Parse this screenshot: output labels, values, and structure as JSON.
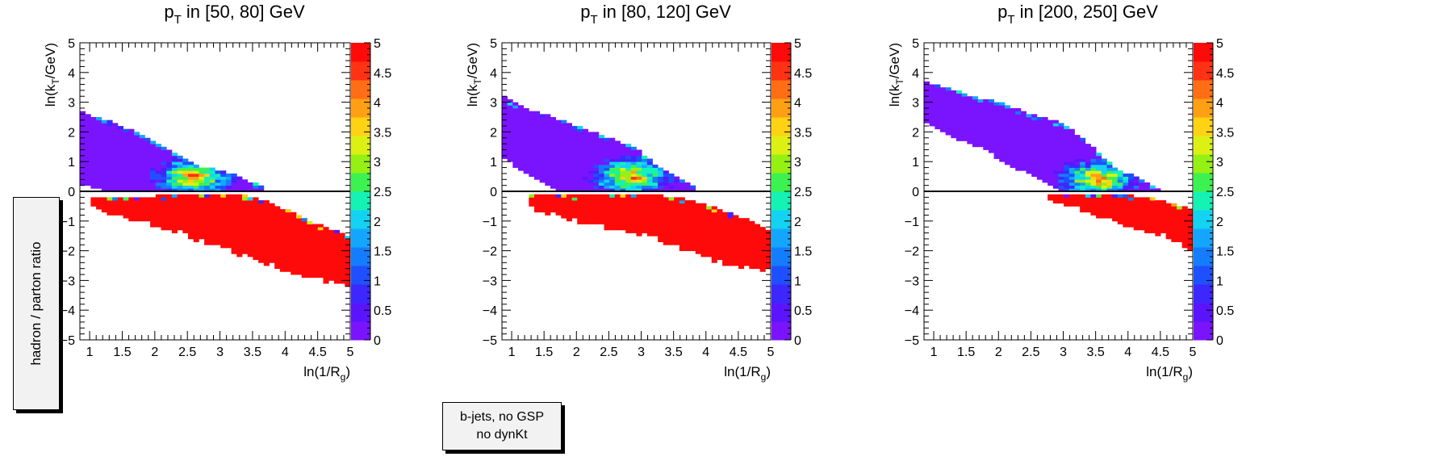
{
  "side_label": "hadron / parton ratio",
  "note": [
    "b-jets, no GSP",
    "no dynKt"
  ],
  "chart_data": [
    {
      "type": "heatmap",
      "title_base": "p",
      "title_sub": "T",
      "title_rest": " in [50, 80] GeV",
      "xlabel": "ln(1/R",
      "xlabel_sub": "g",
      "ylabel": "ln(k",
      "ylabel_sub": "T",
      "ylabel_rest": "/GeV)",
      "xlim": [
        0.85,
        5.0
      ],
      "ylim": [
        -5,
        5
      ],
      "zlim": [
        0,
        5
      ],
      "xticks": [
        "1",
        "1.5",
        "2",
        "2.5",
        "3",
        "3.5",
        "4",
        "4.5",
        "5"
      ],
      "yticks": [
        "−5",
        "−4",
        "−3",
        "−2",
        "−1",
        "0",
        "1",
        "2",
        "3",
        "4",
        "5"
      ],
      "zticks": [
        "0",
        "0.5",
        "1",
        "1.5",
        "2",
        "2.5",
        "3",
        "3.5",
        "4",
        "4.5",
        "5"
      ],
      "reference_line_y": 0,
      "regions": {
        "low_band_top": [
          [
            0.85,
            2.75
          ],
          [
            1.1,
            2.5
          ],
          [
            1.4,
            2.3
          ],
          [
            1.8,
            1.9
          ],
          [
            2.2,
            1.4
          ],
          [
            2.6,
            0.9
          ],
          [
            3.0,
            0.7
          ],
          [
            3.3,
            0.5
          ],
          [
            3.6,
            0.2
          ],
          [
            3.75,
            0.0
          ]
        ],
        "low_band_bottom": [
          [
            0.85,
            0.25
          ],
          [
            1.2,
            0.05
          ],
          [
            1.5,
            -0.1
          ],
          [
            2.0,
            -0.15
          ],
          [
            2.5,
            0.0
          ]
        ],
        "high_band_top": [
          [
            1.0,
            -0.2
          ],
          [
            1.4,
            -0.2
          ],
          [
            2.0,
            -0.15
          ],
          [
            2.8,
            -0.1
          ],
          [
            3.4,
            -0.15
          ],
          [
            3.8,
            -0.4
          ],
          [
            4.2,
            -0.8
          ],
          [
            4.6,
            -1.2
          ],
          [
            5.0,
            -1.5
          ]
        ],
        "high_band_bottom": [
          [
            1.0,
            -0.45
          ],
          [
            1.3,
            -0.75
          ],
          [
            1.8,
            -1.1
          ],
          [
            2.3,
            -1.35
          ],
          [
            2.8,
            -1.8
          ],
          [
            3.2,
            -2.1
          ],
          [
            3.6,
            -2.4
          ],
          [
            4.0,
            -2.7
          ],
          [
            4.5,
            -3.0
          ],
          [
            5.0,
            -3.2
          ]
        ],
        "transition_center": [
          2.6,
          0.5
        ]
      }
    },
    {
      "type": "heatmap",
      "title_base": "p",
      "title_sub": "T",
      "title_rest": " in [80, 120] GeV",
      "xlabel": "ln(1/R",
      "xlabel_sub": "g",
      "ylabel": "ln(k",
      "ylabel_sub": "T",
      "ylabel_rest": "/GeV)",
      "xlim": [
        0.85,
        5.0
      ],
      "ylim": [
        -5,
        5
      ],
      "zlim": [
        0,
        5
      ],
      "xticks": [
        "1",
        "1.5",
        "2",
        "2.5",
        "3",
        "3.5",
        "4",
        "4.5",
        "5"
      ],
      "yticks": [
        "−5",
        "−4",
        "−3",
        "−2",
        "−1",
        "0",
        "1",
        "2",
        "3",
        "4",
        "5"
      ],
      "zticks": [
        "0",
        "0.5",
        "1",
        "1.5",
        "2",
        "2.5",
        "3",
        "3.5",
        "4",
        "4.5",
        "5"
      ],
      "reference_line_y": 0,
      "regions": {
        "low_band_top": [
          [
            0.85,
            3.2
          ],
          [
            1.1,
            2.9
          ],
          [
            1.5,
            2.6
          ],
          [
            2.0,
            2.2
          ],
          [
            2.5,
            1.8
          ],
          [
            2.9,
            1.5
          ],
          [
            3.3,
            0.8
          ],
          [
            3.7,
            0.3
          ],
          [
            3.9,
            0.0
          ]
        ],
        "low_band_bottom": [
          [
            0.85,
            1.2
          ],
          [
            1.2,
            0.6
          ],
          [
            1.6,
            0.1
          ],
          [
            2.0,
            -0.1
          ],
          [
            2.7,
            0.0
          ]
        ],
        "high_band_top": [
          [
            1.3,
            -0.1
          ],
          [
            2.0,
            -0.15
          ],
          [
            2.6,
            -0.1
          ],
          [
            3.2,
            -0.1
          ],
          [
            3.8,
            -0.3
          ],
          [
            4.2,
            -0.6
          ],
          [
            4.6,
            -0.9
          ],
          [
            5.0,
            -1.3
          ]
        ],
        "high_band_bottom": [
          [
            1.3,
            -0.6
          ],
          [
            1.8,
            -0.9
          ],
          [
            2.3,
            -1.2
          ],
          [
            2.8,
            -1.4
          ],
          [
            3.2,
            -1.6
          ],
          [
            3.6,
            -2.0
          ],
          [
            4.0,
            -2.3
          ],
          [
            4.5,
            -2.6
          ],
          [
            5.0,
            -2.7
          ]
        ],
        "transition_center": [
          2.85,
          0.5
        ]
      }
    },
    {
      "type": "heatmap",
      "title_base": "p",
      "title_sub": "T",
      "title_rest": " in [200, 250] GeV",
      "xlabel": "ln(1/R",
      "xlabel_sub": "g",
      "ylabel": "ln(k",
      "ylabel_sub": "T",
      "ylabel_rest": "/GeV)",
      "xlim": [
        0.85,
        5.0
      ],
      "ylim": [
        -5,
        5
      ],
      "zlim": [
        0,
        5
      ],
      "xticks": [
        "1",
        "1.5",
        "2",
        "2.5",
        "3",
        "3.5",
        "4",
        "4.5",
        "5"
      ],
      "yticks": [
        "−5",
        "−4",
        "−3",
        "−2",
        "−1",
        "0",
        "1",
        "2",
        "3",
        "4",
        "5"
      ],
      "zticks": [
        "0",
        "0.5",
        "1",
        "1.5",
        "2",
        "2.5",
        "3",
        "3.5",
        "4",
        "4.5",
        "5"
      ],
      "reference_line_y": 0,
      "regions": {
        "low_band_top": [
          [
            0.85,
            3.7
          ],
          [
            1.2,
            3.5
          ],
          [
            1.6,
            3.2
          ],
          [
            2.0,
            3.0
          ],
          [
            2.5,
            2.6
          ],
          [
            3.0,
            2.3
          ],
          [
            3.4,
            1.6
          ],
          [
            3.8,
            0.8
          ],
          [
            4.2,
            0.4
          ],
          [
            4.5,
            0.1
          ]
        ],
        "low_band_bottom": [
          [
            0.85,
            2.3
          ],
          [
            1.3,
            1.8
          ],
          [
            1.8,
            1.4
          ],
          [
            2.2,
            0.8
          ],
          [
            2.5,
            0.6
          ],
          [
            2.8,
            0.2
          ],
          [
            3.0,
            0.0
          ]
        ],
        "high_band_top": [
          [
            2.8,
            -0.05
          ],
          [
            3.4,
            -0.1
          ],
          [
            3.8,
            -0.1
          ],
          [
            4.3,
            -0.2
          ],
          [
            4.7,
            -0.4
          ],
          [
            5.0,
            -0.6
          ]
        ],
        "high_band_bottom": [
          [
            2.8,
            -0.4
          ],
          [
            3.2,
            -0.6
          ],
          [
            3.6,
            -0.9
          ],
          [
            4.0,
            -1.2
          ],
          [
            4.5,
            -1.5
          ],
          [
            5.0,
            -2.0
          ]
        ],
        "transition_center": [
          3.55,
          0.4
        ]
      }
    }
  ]
}
